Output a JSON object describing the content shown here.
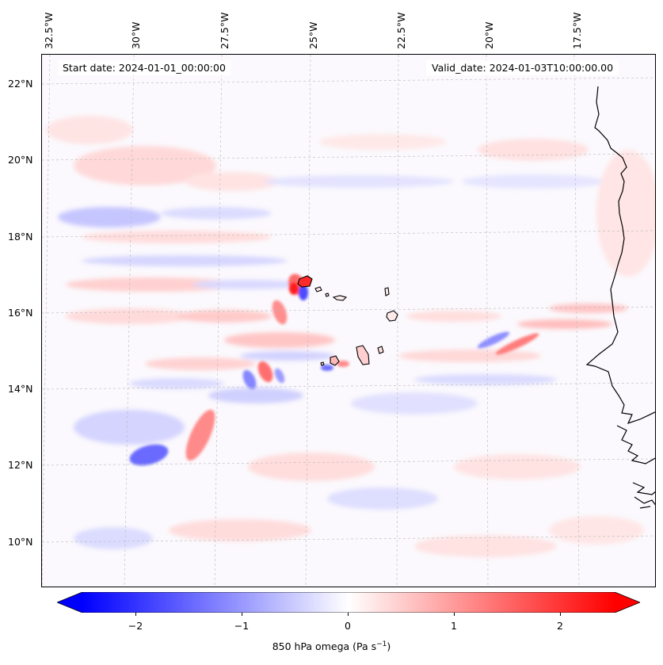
{
  "map": {
    "start_date": "Start date: 2024-01-01_00:00:00",
    "valid_date": "Valid_date: 2024-01-03T10:00:00.00",
    "lon_labels": [
      "32.5°W",
      "30°W",
      "27.5°W",
      "25°W",
      "22.5°W",
      "20°W",
      "17.5°W"
    ],
    "lat_labels": [
      "22°N",
      "20°N",
      "18°N",
      "16°N",
      "14°N",
      "12°N",
      "10°N"
    ],
    "extent": {
      "lon_min": -33.0,
      "lon_max": -15.0,
      "lat_min": 8.9,
      "lat_max": 22.8
    },
    "gridlines": true,
    "projection": "lambert-conformal",
    "features": [
      "Cabo Verde islands",
      "West African coastline (Mauritania, Senegal, Guinea-Bissau)"
    ]
  },
  "colorbar": {
    "ticks": [
      "−2",
      "−1",
      "0",
      "1",
      "2"
    ],
    "tick_values": [
      -2,
      -1,
      0,
      1,
      2
    ],
    "range": [
      -2.5,
      2.5
    ],
    "extend": "both",
    "colormap": "bwr",
    "label": "850 hPa omega (Pa s",
    "label_exp": "−1",
    "label_close": ")",
    "colors": {
      "negative": "#0000ff",
      "zero": "#ffffff",
      "positive": "#ff0000"
    }
  }
}
